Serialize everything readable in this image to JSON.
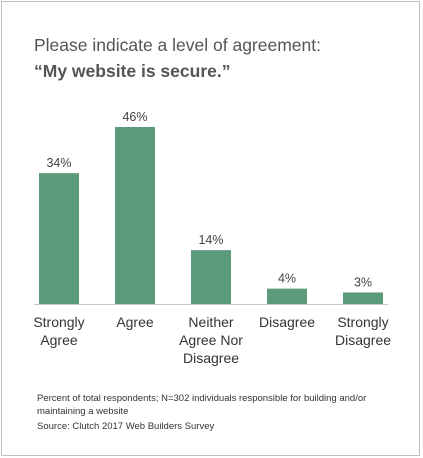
{
  "chart_data": {
    "type": "bar",
    "title": "Please indicate a level of agreement:",
    "subtitle": "“My website is secure.”",
    "categories": [
      [
        "Strongly",
        "Agree"
      ],
      [
        "Agree"
      ],
      [
        "Neither",
        "Agree Nor",
        "Disagree"
      ],
      [
        "Disagree"
      ],
      [
        "Strongly",
        "Disagree"
      ]
    ],
    "values": [
      34,
      46,
      14,
      4,
      3
    ],
    "value_labels": [
      "34%",
      "46%",
      "14%",
      "4%",
      "3%"
    ],
    "unit": "%",
    "ylim": [
      0,
      46
    ],
    "bar_color": "#5c9a7c",
    "axis_color": "#c8c8c8",
    "grid": false,
    "legend": "none"
  },
  "footnotes": {
    "line1": "Percent of total respondents; N=302 individuals responsible for building and/or",
    "line2": "maintaining a website",
    "line3": "Source: Clutch 2017 Web Builders Survey"
  }
}
